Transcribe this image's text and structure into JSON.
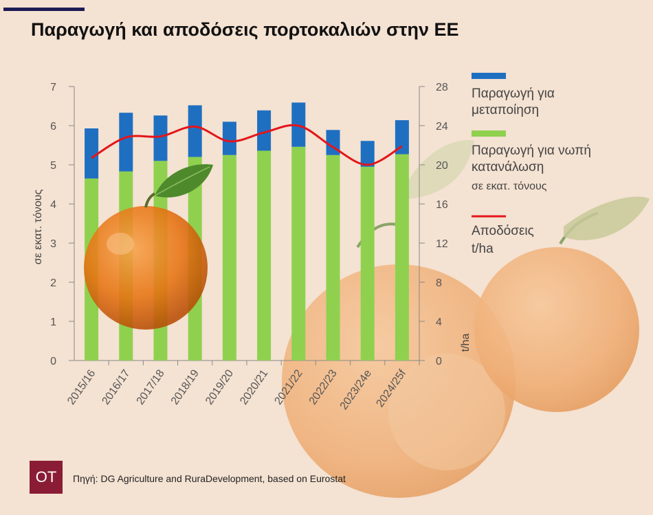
{
  "title": "Παραγωγή και αποδόσεις πορτοκαλιών στην ΕΕ",
  "source_text": "Πηγή: DG Agriculture and RuraDevelopment, based on Eurostat",
  "logo_text": "OT",
  "colors": {
    "processing": "#1f6fc1",
    "fresh": "#8fd14f",
    "yield": "#e4151a",
    "background": "#f4e2d2"
  },
  "chart_data": {
    "type": "bar",
    "stacked": true,
    "categories": [
      "2015/16",
      "2016/17",
      "2017/18",
      "2018/19",
      "2019/20",
      "2020/21",
      "2021/22",
      "2022/23",
      "2023/24e",
      "2024/25f"
    ],
    "series": [
      {
        "name": "Παραγωγή για νωπή κατανάλωση",
        "axis": "left",
        "values": [
          4.65,
          4.83,
          5.1,
          5.2,
          5.25,
          5.36,
          5.46,
          5.25,
          4.95,
          5.27
        ]
      },
      {
        "name": "Παραγωγή για μεταποίηση",
        "axis": "left",
        "values": [
          1.28,
          1.5,
          1.16,
          1.32,
          0.85,
          1.03,
          1.13,
          0.64,
          0.66,
          0.87
        ]
      },
      {
        "name": "Αποδόσεις",
        "type": "line",
        "axis": "right",
        "values": [
          20.7,
          22.8,
          22.9,
          23.9,
          22.4,
          23.3,
          24.0,
          21.8,
          20.0,
          21.9
        ]
      }
    ],
    "ylabel": "σε εκατ. τόνους",
    "ylim": [
      0,
      7
    ],
    "yticks": [
      "0",
      "1",
      "2",
      "3",
      "4",
      "5",
      "6",
      "7"
    ],
    "y2label": "t/ha",
    "y2lim": [
      0,
      28
    ],
    "y2ticks": [
      "0",
      "4",
      "8",
      "12",
      "16",
      "20",
      "24",
      "28"
    ],
    "legend": [
      {
        "line1": "Παραγωγή για",
        "line2": "μεταποίηση"
      },
      {
        "line1": "Παραγωγή για νωπή",
        "line2": "κατανάλωση",
        "line3": "σε εκατ. τόνους"
      },
      {
        "line1": "Αποδόσεις",
        "line2": "t/ha"
      }
    ],
    "legend_position": "right",
    "grid": false
  }
}
